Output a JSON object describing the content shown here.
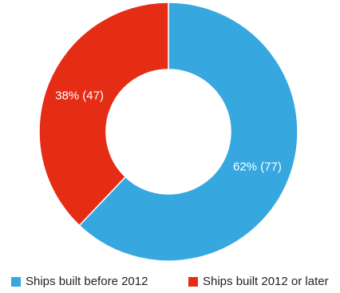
{
  "chart_data": {
    "type": "pie",
    "variant": "donut",
    "categories": [
      "Ships built before 2012",
      "Ships built 2012 or later"
    ],
    "values": [
      77,
      47
    ],
    "percent_labels": [
      "62% (77)",
      "38% (47)"
    ],
    "colors": [
      "#37a7e0",
      "#e52d16"
    ],
    "title": "",
    "legend_position": "bottom"
  },
  "legend": {
    "items": [
      {
        "label": "Ships built before 2012",
        "color": "#37a7e0"
      },
      {
        "label": "Ships built 2012 or later",
        "color": "#e52d16"
      }
    ]
  }
}
